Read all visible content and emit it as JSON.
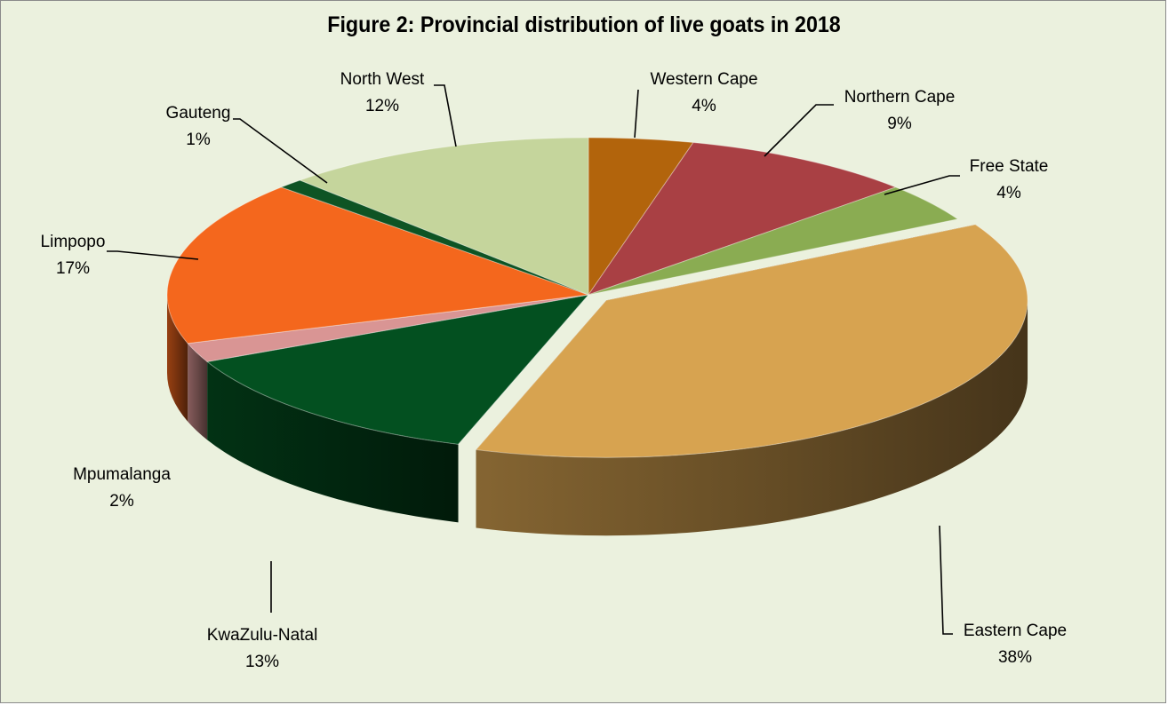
{
  "chart_data": {
    "type": "pie",
    "title": "Figure 2: Provincial distribution of live goats in 2018",
    "slices": [
      {
        "label": "Western Cape",
        "value_label": "4%",
        "value": 4,
        "color": "#b2640c"
      },
      {
        "label": "Northern Cape",
        "value_label": "9%",
        "value": 9,
        "color": "#a94044"
      },
      {
        "label": "Free State",
        "value_label": "4%",
        "value": 4,
        "color": "#8aac52"
      },
      {
        "label": "Eastern Cape",
        "value_label": "38%",
        "value": 38,
        "color": "#d7a350"
      },
      {
        "label": "KwaZulu-Natal",
        "value_label": "13%",
        "value": 13,
        "color": "#035020"
      },
      {
        "label": "Mpumalanga",
        "value_label": "2%",
        "value": 2,
        "color": "#d99594"
      },
      {
        "label": "Limpopo",
        "value_label": "17%",
        "value": 17,
        "color": "#f4671d"
      },
      {
        "label": "Gauteng",
        "value_label": "1%",
        "value": 1,
        "color": "#0e5424"
      },
      {
        "label": "North West",
        "value_label": "12%",
        "value": 12,
        "color": "#c5d59c"
      }
    ],
    "background": "#ebf1de",
    "legend": "none"
  }
}
